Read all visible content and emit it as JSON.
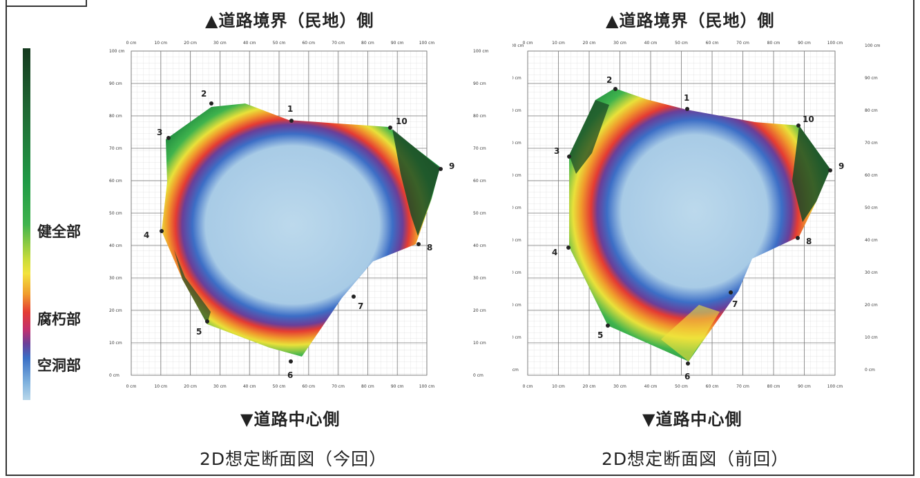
{
  "legend": {
    "healthy": "健全部",
    "decay": "腐朽部",
    "cavity": "空洞部"
  },
  "top_label": "▲道路境界（民地）側",
  "bottom_label": "▼道路中心側",
  "x_ticks": [
    "0 cm",
    "10 cm",
    "20 cm",
    "30 cm",
    "40 cm",
    "50 cm",
    "60 cm",
    "70 cm",
    "80 cm",
    "90 cm",
    "100 cm"
  ],
  "y_ticks": [
    "100 cm",
    "90 cm",
    "80 cm",
    "70 cm",
    "60 cm",
    "50 cm",
    "40 cm",
    "30 cm",
    "20 cm",
    "10 cm",
    "0 cm"
  ],
  "panels": [
    {
      "caption": "2D想定断面図（今回）",
      "points": [
        "1",
        "2",
        "3",
        "4",
        "5",
        "6",
        "7",
        "8",
        "9",
        "10"
      ]
    },
    {
      "caption": "2D想定断面図（前回）",
      "points": [
        "1",
        "2",
        "3",
        "4",
        "5",
        "6",
        "7",
        "8",
        "9",
        "10"
      ]
    }
  ],
  "colors": {
    "healthy": "#1f9a45",
    "dark_healthy": "#163a1f",
    "yellow": "#f2e23c",
    "decay": "#e43b33",
    "magenta": "#c2306e",
    "cavity": "#3a6fc5",
    "cavity_light": "#b8d7ea"
  }
}
